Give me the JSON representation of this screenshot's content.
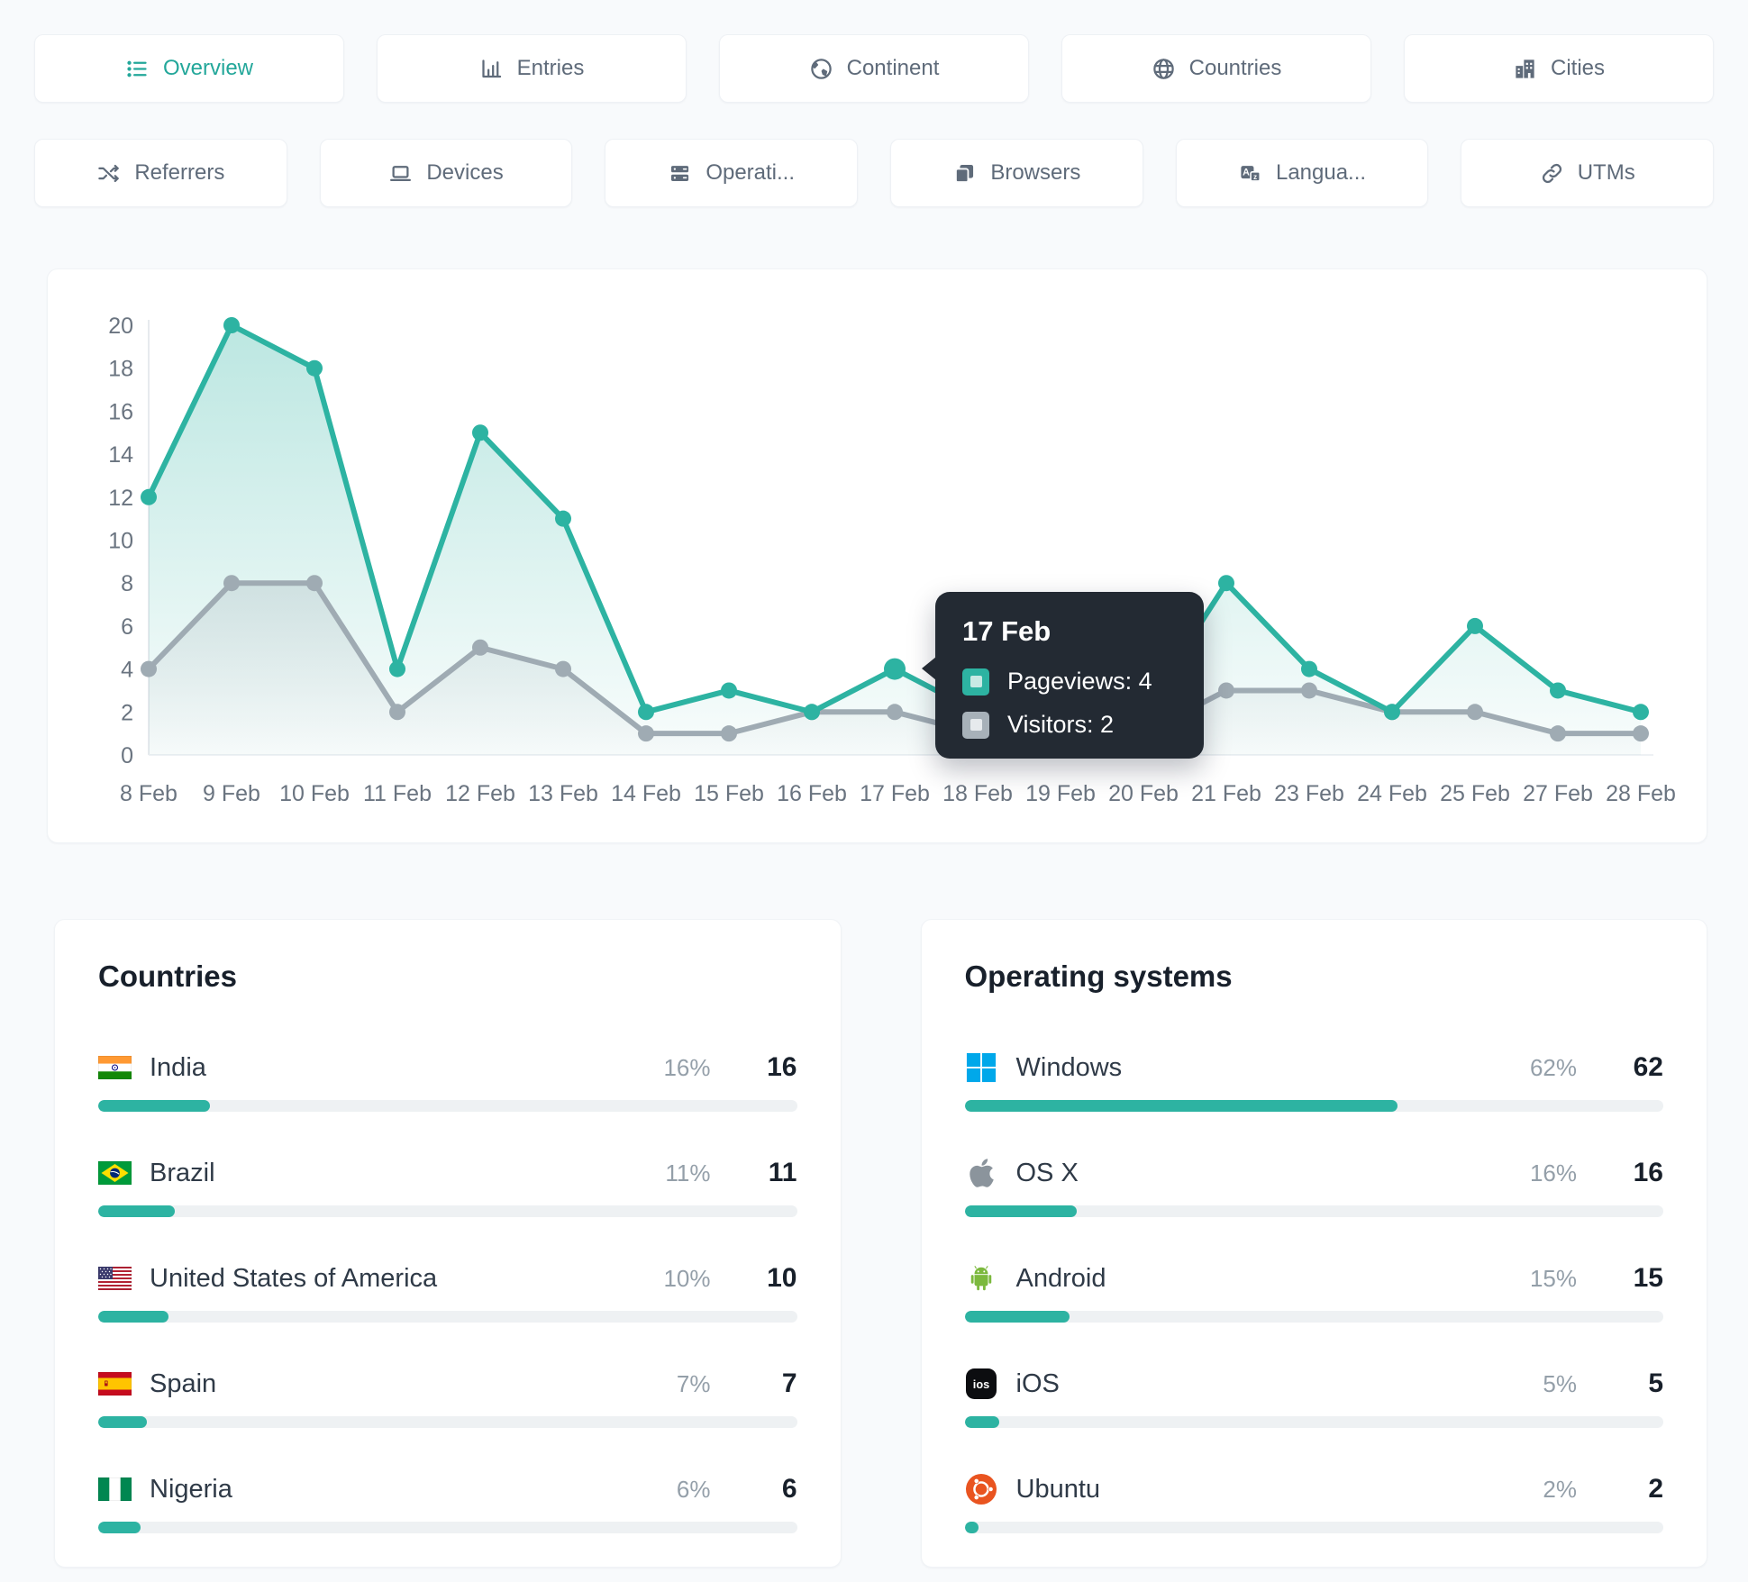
{
  "tabs_row1": [
    {
      "label": "Overview",
      "icon": "list-icon",
      "active": true
    },
    {
      "label": "Entries",
      "icon": "bar-chart-icon",
      "active": false
    },
    {
      "label": "Continent",
      "icon": "earth-icon",
      "active": false
    },
    {
      "label": "Countries",
      "icon": "globe-icon",
      "active": false
    },
    {
      "label": "Cities",
      "icon": "buildings-icon",
      "active": false
    }
  ],
  "tabs_row2": [
    {
      "label": "Referrers",
      "icon": "shuffle-icon",
      "active": false
    },
    {
      "label": "Devices",
      "icon": "laptop-icon",
      "active": false
    },
    {
      "label": "Operati...",
      "icon": "server-icon",
      "active": false
    },
    {
      "label": "Browsers",
      "icon": "window-icon",
      "active": false
    },
    {
      "label": "Langua...",
      "icon": "translate-icon",
      "active": false
    },
    {
      "label": "UTMs",
      "icon": "link-icon",
      "active": false
    }
  ],
  "chart_data": {
    "type": "line",
    "categories": [
      "8 Feb",
      "9 Feb",
      "10 Feb",
      "11 Feb",
      "12 Feb",
      "13 Feb",
      "14 Feb",
      "15 Feb",
      "16 Feb",
      "17 Feb",
      "18 Feb",
      "19 Feb",
      "20 Feb",
      "21 Feb",
      "23 Feb",
      "24 Feb",
      "25 Feb",
      "27 Feb",
      "28 Feb"
    ],
    "series": [
      {
        "name": "Pageviews",
        "color": "#2db3a2",
        "values": [
          12,
          20,
          18,
          4,
          15,
          11,
          2,
          3,
          2,
          4,
          2,
          2,
          2,
          8,
          4,
          2,
          6,
          3,
          2
        ]
      },
      {
        "name": "Visitors",
        "color": "#9fabb3",
        "values": [
          4,
          8,
          8,
          2,
          5,
          4,
          1,
          1,
          2,
          2,
          1,
          1,
          1,
          3,
          3,
          2,
          2,
          1,
          1
        ]
      }
    ],
    "ylim": [
      0,
      20
    ],
    "yticks": [
      0,
      2,
      4,
      6,
      8,
      10,
      12,
      14,
      16,
      18,
      20
    ],
    "grid": false,
    "legend": "none",
    "highlight_index": 9
  },
  "tooltip": {
    "title": "17 Feb",
    "rows": [
      {
        "label": "Pageviews",
        "value": 4,
        "color": "#2db3a2",
        "inner": "#c9e9e4"
      },
      {
        "label": "Visitors",
        "value": 2,
        "color": "#a7b1b9",
        "inner": "#e6eaed"
      }
    ]
  },
  "panels": [
    {
      "title": "Countries",
      "rows": [
        {
          "icon": "flag-india",
          "name": "India",
          "percent": "16%",
          "value": "16",
          "bar": 16
        },
        {
          "icon": "flag-brazil",
          "name": "Brazil",
          "percent": "11%",
          "value": "11",
          "bar": 11
        },
        {
          "icon": "flag-usa",
          "name": "United States of America",
          "percent": "10%",
          "value": "10",
          "bar": 10
        },
        {
          "icon": "flag-spain",
          "name": "Spain",
          "percent": "7%",
          "value": "7",
          "bar": 7
        },
        {
          "icon": "flag-nigeria",
          "name": "Nigeria",
          "percent": "6%",
          "value": "6",
          "bar": 6
        }
      ]
    },
    {
      "title": "Operating systems",
      "rows": [
        {
          "icon": "windows-logo",
          "name": "Windows",
          "percent": "62%",
          "value": "62",
          "bar": 62
        },
        {
          "icon": "apple-logo",
          "name": "OS X",
          "percent": "16%",
          "value": "16",
          "bar": 16
        },
        {
          "icon": "android-logo",
          "name": "Android",
          "percent": "15%",
          "value": "15",
          "bar": 15
        },
        {
          "icon": "ios-logo",
          "name": "iOS",
          "percent": "5%",
          "value": "5",
          "bar": 5
        },
        {
          "icon": "ubuntu-logo",
          "name": "Ubuntu",
          "percent": "2%",
          "value": "2",
          "bar": 2
        }
      ]
    }
  ],
  "colors": {
    "accent": "#2db3a2",
    "visitors": "#9fabb3",
    "tab_active": "#23a79a",
    "bar_track": "#eef1f3",
    "axis_text": "#6a7480",
    "tooltip_bg": "#232a33"
  }
}
